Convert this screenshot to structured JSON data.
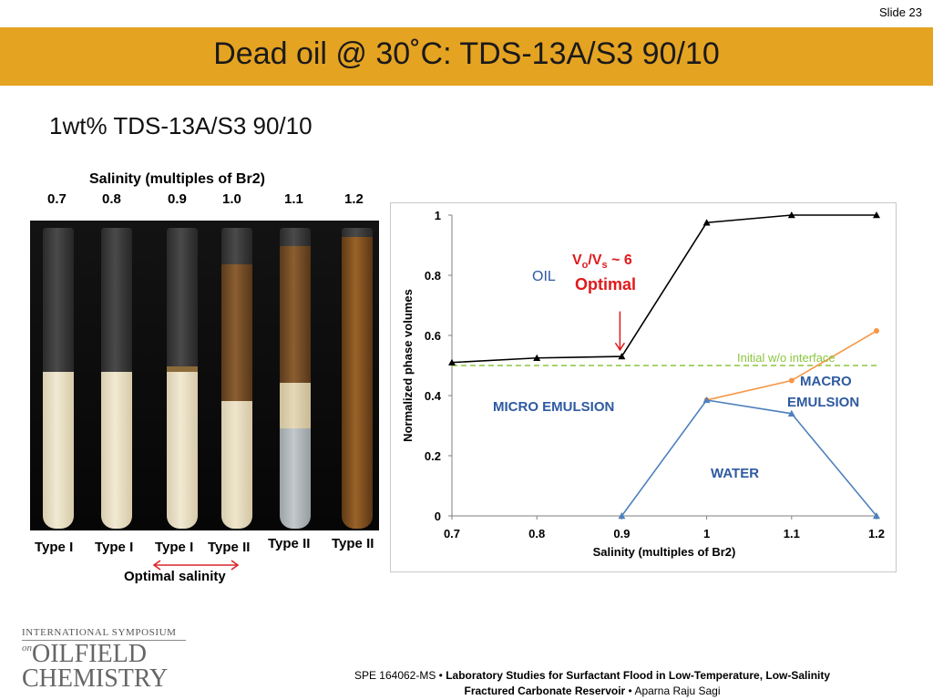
{
  "slide_number": "Slide 23",
  "title": "Dead oil @ 30˚C: TDS-13A/S3 90/10",
  "subtitle": "1wt% TDS-13A/S3 90/10",
  "photo": {
    "heading": "Salinity (multiples of Br2)",
    "salinities": [
      "0.7",
      "0.8",
      "0.9",
      "1.0",
      "1.1",
      "1.2"
    ],
    "types": [
      "Type I",
      "Type I",
      "Type I",
      "Type II",
      "Type II",
      "Type II"
    ],
    "optimal_label": "Optimal salinity",
    "arrow_color": "#d9262a"
  },
  "chart_data": {
    "type": "line",
    "x": [
      0.7,
      0.8,
      0.9,
      1.0,
      1.1,
      1.2
    ],
    "x_tick_labels": [
      "0.7",
      "0.8",
      "0.9",
      "1",
      "1.1",
      "1.2"
    ],
    "y_tick_labels": [
      "0",
      "0.2",
      "0.4",
      "0.6",
      "0.8",
      "1"
    ],
    "xlabel": "Salinity (multiples of Br2)",
    "ylabel": "Normalized phase volumes",
    "xlim": [
      0.7,
      1.2
    ],
    "ylim": [
      0,
      1
    ],
    "grid": false,
    "series": [
      {
        "color": "#000000",
        "marker": "triangle",
        "x": [
          0.7,
          0.8,
          0.9,
          1.0,
          1.1,
          1.2
        ],
        "values": [
          0.51,
          0.525,
          0.53,
          0.975,
          1.0,
          1.0
        ]
      },
      {
        "color": "#f79646",
        "marker": "circle",
        "x": [
          1.0,
          1.1,
          1.2
        ],
        "values": [
          0.385,
          0.45,
          0.615
        ]
      },
      {
        "color": "#4f81bd",
        "marker": "triangle",
        "x": [
          0.9,
          1.0,
          1.1,
          1.2
        ],
        "values": [
          0.0,
          0.385,
          0.34,
          0.0
        ]
      }
    ],
    "reference_line": {
      "value": 0.5,
      "color": "#8cc63f",
      "label": "Initial w/o interface"
    },
    "annotations": {
      "oil": "OIL",
      "micro": "MICRO EMULSION",
      "macro_1": "MACRO",
      "macro_2": "EMULSION",
      "water": "WATER",
      "optimal_v": "V",
      "optimal_sub_o": "o",
      "optimal_slash": "/V",
      "optimal_sub_s": "s",
      "optimal_approx": " ~ 6",
      "optimal_word": "Optimal",
      "optimal_color": "#e0191b",
      "phase_text_color": "#2e5aa0"
    }
  },
  "footer": {
    "logo_top": "INTERNATIONAL SYMPOSIUM",
    "logo_on": "on",
    "logo_mid": "OILFIELD",
    "logo_bottom": "CHEMISTRY",
    "ref_prefix": "SPE 164062-MS • ",
    "ref_title_1": "Laboratory Studies for Surfactant Flood in Low-Temperature, Low-Salinity",
    "ref_title_2": "Fractured Carbonate Reservoir",
    "ref_sep": " • ",
    "ref_author": "Aparna Raju Sagi"
  },
  "colors": {
    "title_band": "#e5a322"
  }
}
